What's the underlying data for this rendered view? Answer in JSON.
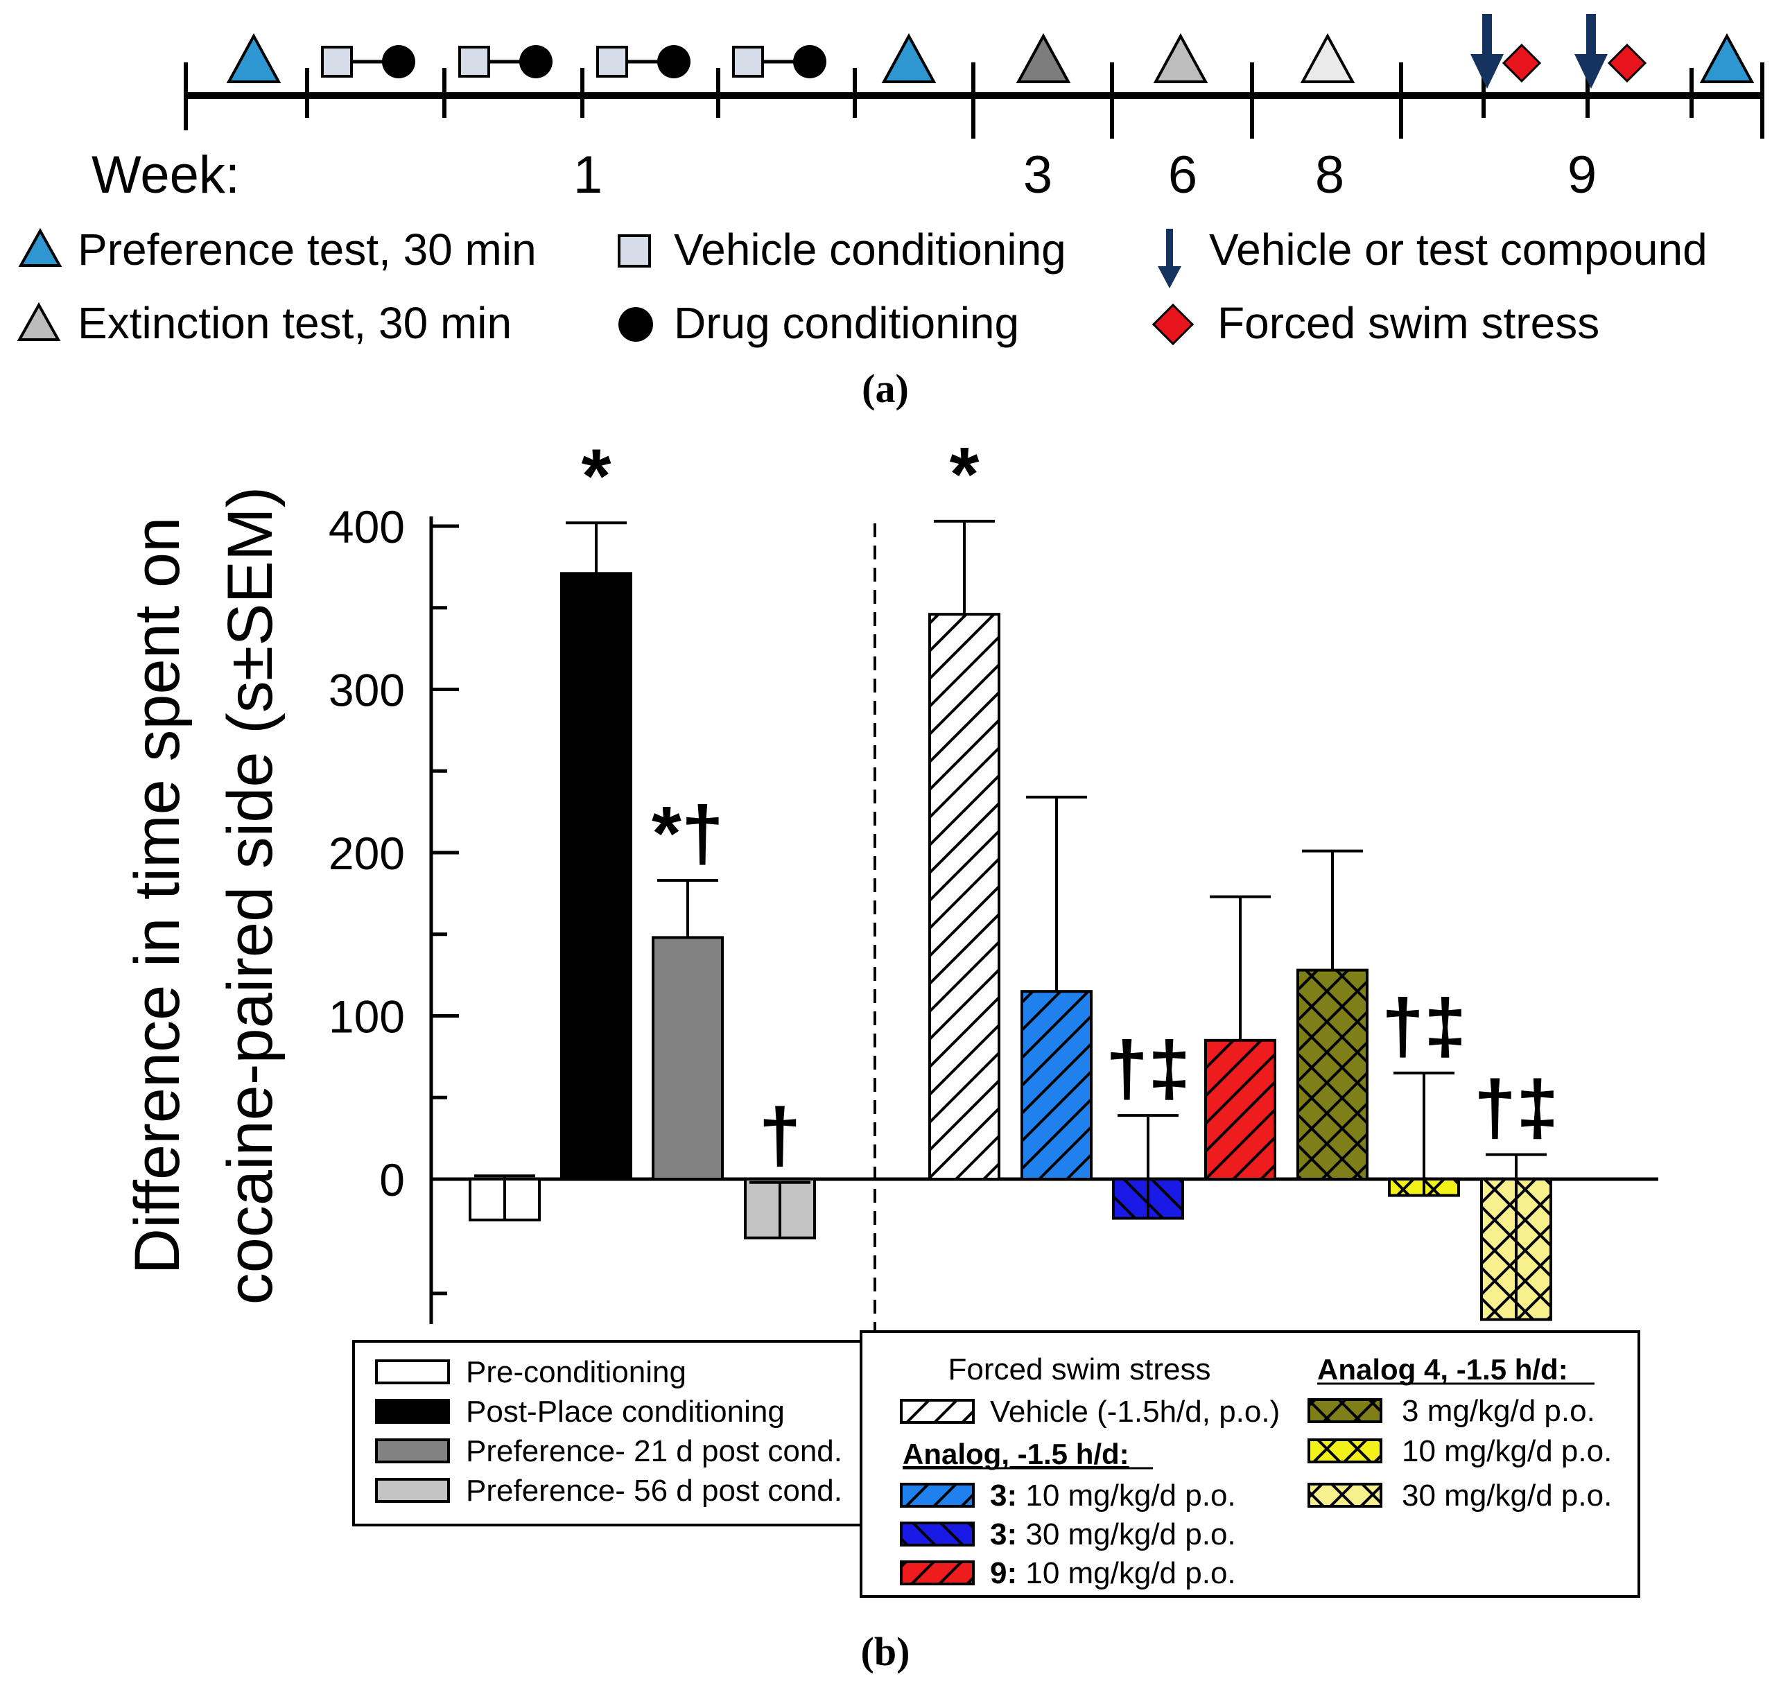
{
  "timeline": {
    "week_prefix": "Week:",
    "week_labels": [
      "1",
      "3",
      "6",
      "8",
      "9"
    ],
    "legend": {
      "preference_test": "Preference test, 30 min",
      "extinction_test": "Extinction test, 30 min",
      "vehicle_conditioning": "Vehicle conditioning",
      "drug_conditioning": "Drug conditioning",
      "vehicle_or_compound": "Vehicle or test compound",
      "forced_swim": "Forced swim stress"
    },
    "colors": {
      "preference_test": "#2e96d0",
      "extinction_test": "#bcbcbc",
      "extinction_3wk": "#7d7d7d",
      "extinction_6wk": "#bdbdbd",
      "extinction_8wk": "#eaeaea",
      "vehicle_conditioning": "#d7dde8",
      "drug_conditioning": "#000000",
      "arrow": "#14335e",
      "forced_swim": "#e8141c"
    }
  },
  "panel_a_caption": "(a)",
  "panel_b_caption": "(b)",
  "chart_data": {
    "type": "bar",
    "ylabel_line1": "Difference in time spent on",
    "ylabel_line2": "cocaine-paired side (s±SEM)",
    "ylim": [
      -85,
      400
    ],
    "yticks": [
      0,
      100,
      200,
      300,
      400
    ],
    "minor_ticks": [
      -70,
      50,
      150,
      250,
      350
    ],
    "groups": [
      {
        "name": "Pre-conditioning",
        "value": -25,
        "error": 27,
        "fill": "#ffffff",
        "pattern": "solid",
        "annotation": ""
      },
      {
        "name": "Post-Place conditioning",
        "value": 371,
        "error": 31,
        "fill": "#000000",
        "pattern": "solid",
        "annotation": "*"
      },
      {
        "name": "Preference- 21 d post cond.",
        "value": 148,
        "error": 35,
        "fill": "#828282",
        "pattern": "solid",
        "annotation": "*†"
      },
      {
        "name": "Preference- 56 d post cond.",
        "value": -36,
        "error": 34,
        "fill": "#c3c3c3",
        "pattern": "solid",
        "annotation": "†"
      },
      {
        "name": "Vehicle (-1.5h/d, p.o.)",
        "value": 346,
        "error": 57,
        "fill": "#ffffff",
        "pattern": "diag",
        "annotation": "*"
      },
      {
        "name": "3: 10 mg/kg/d p.o.",
        "value": 115,
        "error": 119,
        "fill": "#2080ee",
        "pattern": "diag",
        "annotation": ""
      },
      {
        "name": "3: 30 mg/kg/d p.o.",
        "value": -24,
        "error": 63,
        "fill": "#1a1ae6",
        "pattern": "back",
        "annotation": "†‡"
      },
      {
        "name": "9: 10 mg/kg/d p.o.",
        "value": 85,
        "error": 88,
        "fill": "#ee1c1c",
        "pattern": "diag",
        "annotation": ""
      },
      {
        "name": "Analog 4: 3 mg/kg/d p.o.",
        "value": 128,
        "error": 73,
        "fill": "#7f7f1a",
        "pattern": "cross",
        "annotation": ""
      },
      {
        "name": "Analog 4: 10 mg/kg/d p.o.",
        "value": -10,
        "error": 75,
        "fill": "#f2f21a",
        "pattern": "cross",
        "annotation": "†‡"
      },
      {
        "name": "Analog 4: 30 mg/kg/d p.o.",
        "value": -86,
        "error": 101,
        "fill": "#f7f08c",
        "pattern": "cross",
        "annotation": "†‡"
      }
    ]
  },
  "legend_left": {
    "items": [
      "Pre-conditioning",
      "Post-Place conditioning",
      "Preference- 21 d post cond.",
      "Preference- 56 d post cond."
    ]
  },
  "legend_right": {
    "title": "Forced swim stress",
    "vehicle": "Vehicle (-1.5h/d, p.o.)",
    "analog_heading": "Analog, -1.5 h/d:",
    "analog_items": [
      {
        "bold": "3:",
        "text": " 10 mg/kg/d p.o."
      },
      {
        "bold": "3:",
        "text": " 30 mg/kg/d p.o."
      },
      {
        "bold": "9:",
        "text": " 10 mg/kg/d p.o."
      }
    ],
    "analog4_heading": "Analog 4, -1.5 h/d:",
    "analog4_items": [
      "3 mg/kg/d p.o.",
      "10 mg/kg/d p.o.",
      "30 mg/kg/d p.o."
    ]
  }
}
